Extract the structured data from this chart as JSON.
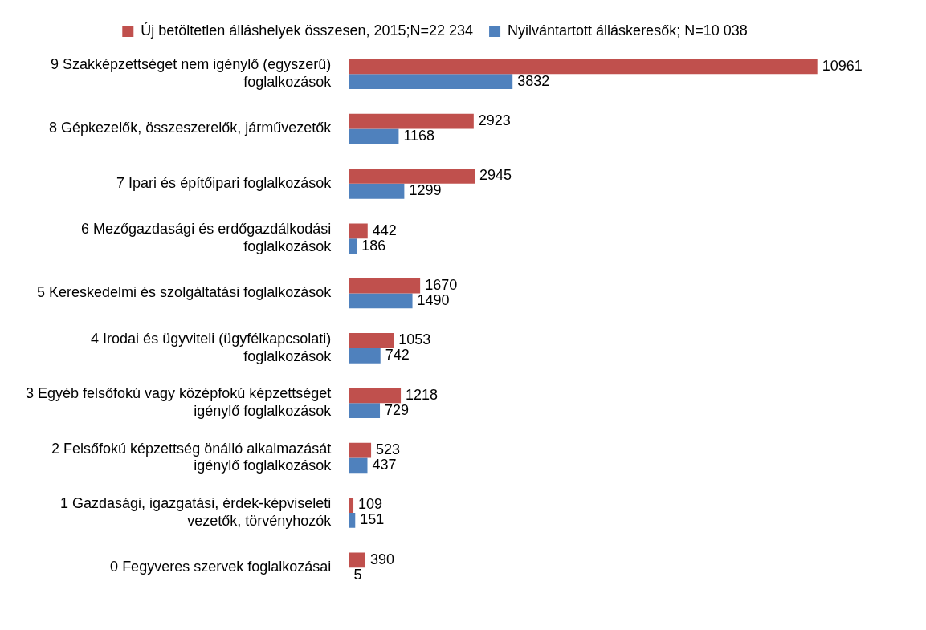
{
  "chart_data": {
    "type": "bar",
    "orientation": "horizontal",
    "categories": [
      "9 Szakképzettséget nem igénylő (egyszerű) foglalkozások",
      "8 Gépkezelők, összeszerelők, járművezetők",
      "7 Ipari és építőipari foglalkozások",
      "6 Mezőgazdasági és erdőgazdálkodási foglalkozások",
      "5 Kereskedelmi és szolgáltatási foglalkozások",
      "4 Irodai és ügyviteli (ügyfélkapcsolati) foglalkozások",
      "3 Egyéb felsőfokú vagy középfokú képzettséget igénylő foglalkozások",
      "2 Felsőfokú képzettség önálló alkalmazását igénylő foglalkozások",
      "1 Gazdasági, igazgatási, érdek-képviseleti vezetők, törvényhozók",
      "0 Fegyveres szervek foglalkozásai"
    ],
    "series": [
      {
        "name": "Új betöltetlen álláshelyek összesen, 2015;N=22 234",
        "color": "#c0504d",
        "values": [
          10961,
          2923,
          2945,
          442,
          1670,
          1053,
          1218,
          523,
          109,
          390
        ]
      },
      {
        "name": "Nyilvántartott álláskeresők; N=10 038",
        "color": "#4f81bd",
        "values": [
          3832,
          1168,
          1299,
          186,
          1490,
          742,
          729,
          437,
          151,
          5
        ]
      }
    ],
    "data_labels": true,
    "legend": "top",
    "grid": false
  }
}
